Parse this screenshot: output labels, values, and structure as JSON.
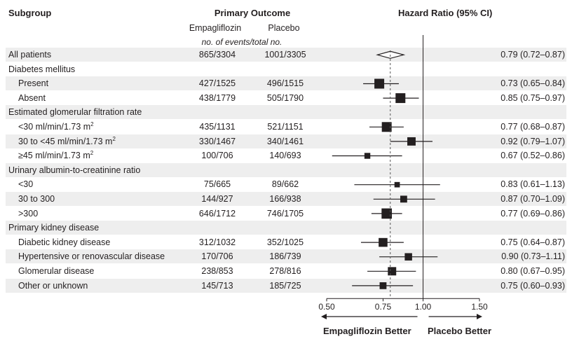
{
  "headers": {
    "subgroup": "Subgroup",
    "primary_outcome": "Primary Outcome",
    "treatment": "Empagliflozin",
    "placebo": "Placebo",
    "events_note": "no. of events/total no.",
    "hazard_ratio": "Hazard Ratio (95% CI)"
  },
  "footer": {
    "left": "Empagliflozin Better",
    "right": "Placebo Better"
  },
  "chart_data": {
    "type": "forest",
    "xscale": "log",
    "xlim": [
      0.5,
      1.5
    ],
    "ticks": [
      "0.50",
      "0.75",
      "1.00",
      "1.50"
    ],
    "tick_values": [
      0.5,
      0.75,
      1.0,
      1.5
    ],
    "reference_line": 1.0,
    "overall_dashed_line": 0.79,
    "rows": [
      {
        "label": "All patients",
        "indent": 0,
        "shade": true,
        "treatment": "865/3304",
        "placebo": "1001/3305",
        "hr": 0.79,
        "lo": 0.72,
        "hi": 0.87,
        "ci_text": "0.79 (0.72–0.87)",
        "marker": "diamond"
      },
      {
        "label": "Diabetes mellitus",
        "indent": 0,
        "shade": false,
        "header": true
      },
      {
        "label": "Present",
        "indent": 1,
        "shade": true,
        "treatment": "427/1525",
        "placebo": "496/1515",
        "hr": 0.73,
        "lo": 0.65,
        "hi": 0.84,
        "ci_text": "0.73 (0.65–0.84)",
        "weight": 1.0
      },
      {
        "label": "Absent",
        "indent": 1,
        "shade": false,
        "treatment": "438/1779",
        "placebo": "505/1790",
        "hr": 0.85,
        "lo": 0.75,
        "hi": 0.97,
        "ci_text": "0.85 (0.75–0.97)",
        "weight": 1.0
      },
      {
        "label": "Estimated glomerular filtration rate",
        "indent": 0,
        "shade": true,
        "header": true
      },
      {
        "label": "<30 ml/min/1.73 m",
        "sup": "2",
        "indent": 1,
        "shade": false,
        "treatment": "435/1131",
        "placebo": "521/1151",
        "hr": 0.77,
        "lo": 0.68,
        "hi": 0.87,
        "ci_text": "0.77 (0.68–0.87)",
        "weight": 1.0
      },
      {
        "label": "30 to <45 ml/min/1.73 m",
        "sup": "2",
        "indent": 1,
        "shade": true,
        "treatment": "330/1467",
        "placebo": "340/1461",
        "hr": 0.92,
        "lo": 0.79,
        "hi": 1.07,
        "ci_text": "0.92 (0.79–1.07)",
        "weight": 0.85
      },
      {
        "label": "≥45 ml/min/1.73 m",
        "sup": "2",
        "indent": 1,
        "shade": false,
        "treatment": "100/706",
        "placebo": "140/693",
        "hr": 0.67,
        "lo": 0.52,
        "hi": 0.86,
        "ci_text": "0.67 (0.52–0.86)",
        "weight": 0.6
      },
      {
        "label": "Urinary albumin-to-creatinine ratio",
        "indent": 0,
        "shade": true,
        "header": true
      },
      {
        "label": "<30",
        "indent": 1,
        "shade": false,
        "treatment": "75/665",
        "placebo": "89/662",
        "hr": 0.83,
        "lo": 0.61,
        "hi": 1.13,
        "ci_text": "0.83 (0.61–1.13)",
        "weight": 0.55
      },
      {
        "label": "30 to 300",
        "indent": 1,
        "shade": true,
        "treatment": "144/927",
        "placebo": "166/938",
        "hr": 0.87,
        "lo": 0.7,
        "hi": 1.09,
        "ci_text": "0.87 (0.70–1.09)",
        "weight": 0.7
      },
      {
        "label": ">300",
        "indent": 1,
        "shade": false,
        "treatment": "646/1712",
        "placebo": "746/1705",
        "hr": 0.77,
        "lo": 0.69,
        "hi": 0.86,
        "ci_text": "0.77 (0.69–0.86)",
        "weight": 1.05
      },
      {
        "label": "Primary kidney disease",
        "indent": 0,
        "shade": true,
        "header": true
      },
      {
        "label": "Diabetic kidney disease",
        "indent": 1,
        "shade": false,
        "treatment": "312/1032",
        "placebo": "352/1025",
        "hr": 0.75,
        "lo": 0.64,
        "hi": 0.87,
        "ci_text": "0.75 (0.64–0.87)",
        "weight": 0.9
      },
      {
        "label": "Hypertensive or renovascular disease",
        "indent": 1,
        "shade": true,
        "treatment": "170/706",
        "placebo": "186/739",
        "hr": 0.9,
        "lo": 0.73,
        "hi": 1.11,
        "ci_text": "0.90 (0.73–1.11)",
        "weight": 0.75
      },
      {
        "label": "Glomerular disease",
        "indent": 1,
        "shade": false,
        "treatment": "238/853",
        "placebo": "278/816",
        "hr": 0.8,
        "lo": 0.67,
        "hi": 0.95,
        "ci_text": "0.80 (0.67–0.95)",
        "weight": 0.85
      },
      {
        "label": "Other or unknown",
        "indent": 1,
        "shade": true,
        "treatment": "145/713",
        "placebo": "185/725",
        "hr": 0.75,
        "lo": 0.6,
        "hi": 0.93,
        "ci_text": "0.75 (0.60–0.93)",
        "weight": 0.7
      }
    ]
  }
}
